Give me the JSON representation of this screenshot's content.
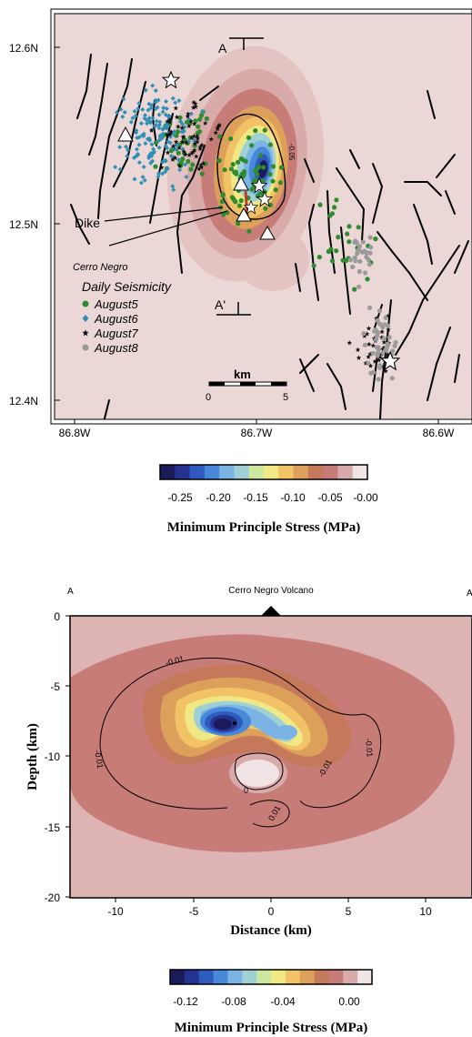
{
  "map": {
    "lat_labels": [
      "12.6N",
      "12.5N",
      "12.4N"
    ],
    "lon_labels": [
      "86.8W",
      "86.7W",
      "86.6W"
    ],
    "section_start": "A",
    "section_end": "A'",
    "dike_label": "Dike",
    "volcano_label": "Cerro Negro",
    "contour_label": "-0.05",
    "scalebar": {
      "unit": "km",
      "start": "0",
      "end": "5"
    },
    "legend": {
      "title": "Daily Seismicity",
      "items": [
        {
          "label": "August5",
          "symbol": "circle",
          "color": "#2e8b2e"
        },
        {
          "label": "August6",
          "symbol": "diamond",
          "color": "#2f8fb6"
        },
        {
          "label": "August7",
          "symbol": "star",
          "color": "#111111"
        },
        {
          "label": "August8",
          "symbol": "circle",
          "color": "#9a9a9a"
        }
      ]
    }
  },
  "colorbar_top": {
    "ticks": [
      "-0.25",
      "-0.20",
      "-0.15",
      "-0.10",
      "-0.05",
      "-0.00"
    ],
    "title": "Minimum Principle Stress (MPa)"
  },
  "section": {
    "left_label": "A",
    "right_label": "A",
    "volcano_label": "Cerro Negro Volcano",
    "ylabel": "Depth (km)",
    "xlabel": "Distance (km)",
    "y_ticks": [
      "0",
      "-5",
      "-10",
      "-15",
      "-20"
    ],
    "x_ticks": [
      "-10",
      "-5",
      "0",
      "5",
      "10"
    ],
    "contour_labels": [
      "-0.01",
      "-0.01",
      "0",
      "-0.01",
      "0.01",
      "-0.01"
    ]
  },
  "colorbar_bottom": {
    "ticks": [
      "-0.12",
      "-0.08",
      "-0.04",
      "0.00"
    ],
    "title": "Minimum Principle Stress (MPa)"
  },
  "colors": {
    "map_background": "#ead7d6",
    "colormap": [
      "#1b1a5a",
      "#23338f",
      "#2f5bbf",
      "#4789d8",
      "#7bb3e4",
      "#9fd0d4",
      "#cde6a0",
      "#efe884",
      "#f1c266",
      "#dca05a",
      "#c5785a",
      "#c77c78",
      "#d9aaaa",
      "#f1e4e4"
    ]
  }
}
